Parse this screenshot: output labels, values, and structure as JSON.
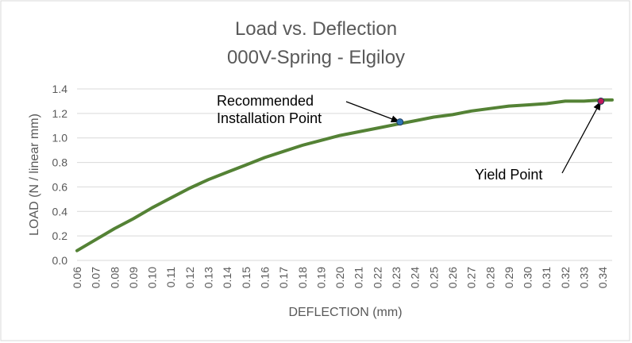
{
  "chart_data": {
    "type": "line",
    "title": "Load vs. Deflection",
    "subtitle": "000V-Spring - Elgiloy",
    "xlabel": "DEFLECTION (mm)",
    "ylabel": "LOAD (N / linear mm)",
    "xlim": [
      0.06,
      0.345
    ],
    "ylim": [
      0.0,
      1.4
    ],
    "grid": true,
    "legend": "none",
    "x_ticks": [
      "0.06",
      "0.07",
      "0.08",
      "0.09",
      "0.10",
      "0.11",
      "0.12",
      "0.13",
      "0.14",
      "0.15",
      "0.16",
      "0.17",
      "0.18",
      "0.19",
      "0.20",
      "0.21",
      "0.22",
      "0.23",
      "0.24",
      "0.25",
      "0.26",
      "0.27",
      "0.28",
      "0.29",
      "0.30",
      "0.31",
      "0.32",
      "0.33",
      "0.34"
    ],
    "y_ticks": [
      "0.0",
      "0.2",
      "0.4",
      "0.6",
      "0.8",
      "1.0",
      "1.2",
      "1.4"
    ],
    "series": [
      {
        "color": "#548235",
        "x": [
          0.06,
          0.07,
          0.08,
          0.09,
          0.1,
          0.11,
          0.12,
          0.13,
          0.14,
          0.15,
          0.16,
          0.17,
          0.18,
          0.19,
          0.2,
          0.21,
          0.22,
          0.23,
          0.24,
          0.25,
          0.26,
          0.27,
          0.28,
          0.29,
          0.3,
          0.31,
          0.32,
          0.33,
          0.34,
          0.345
        ],
        "y": [
          0.08,
          0.17,
          0.26,
          0.34,
          0.43,
          0.51,
          0.59,
          0.66,
          0.72,
          0.78,
          0.84,
          0.89,
          0.94,
          0.98,
          1.02,
          1.05,
          1.08,
          1.11,
          1.14,
          1.17,
          1.19,
          1.22,
          1.24,
          1.26,
          1.27,
          1.28,
          1.3,
          1.3,
          1.31,
          1.31
        ]
      }
    ],
    "annotations": [
      {
        "text": [
          "Recommended",
          "Installation Point"
        ],
        "point": {
          "x": 0.232,
          "y": 1.13
        },
        "marker_color": "#2e75b6"
      },
      {
        "text": [
          "Yield Point"
        ],
        "point": {
          "x": 0.339,
          "y": 1.3
        },
        "marker_color": "#c0185a"
      }
    ]
  }
}
